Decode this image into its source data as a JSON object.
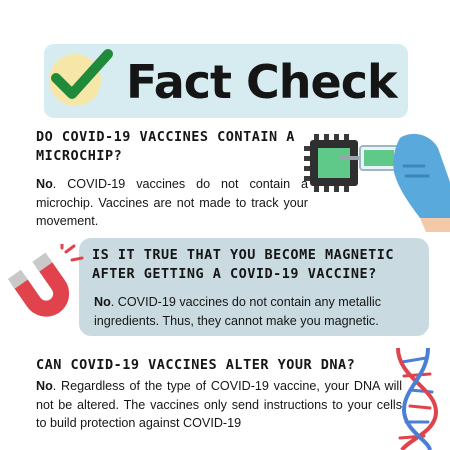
{
  "header": {
    "title": "Fact Check"
  },
  "sections": [
    {
      "question": "Do COVID-19 vaccines contain a microchip?",
      "answer_lead": "No",
      "answer_body": ". COVID-19 vaccines do not contain a microchip. Vaccines are not made to track your movement."
    },
    {
      "question": "Is it true that you become magnetic after getting a COVID-19  vaccine?",
      "answer_lead": "No",
      "answer_body": ". COVID-19 vaccines do not contain any metallic ingredients. Thus, they cannot make you magnetic."
    },
    {
      "question": "Can COVID-19 vaccines alter your DNA?",
      "answer_lead": "No",
      "answer_body": ". Regardless of the type of COVID-19 vaccine, your DNA will not be altered. The vaccines only send instructions to your cells to build protection against COVID-19"
    }
  ],
  "icons": {
    "header": "checkmark-icon",
    "section_1": "microchip-syringe-icon",
    "section_2": "magnet-icon",
    "section_3": "dna-icon"
  },
  "colors": {
    "header_bg": "#d7ecf1",
    "check_green": "#1f8a3a",
    "check_circle": "#f6e7a8",
    "panel_bg": "#c9dbe1",
    "magnet_red": "#e0434b",
    "chip_green": "#5fc98a",
    "glove_blue": "#5aa9dc"
  }
}
